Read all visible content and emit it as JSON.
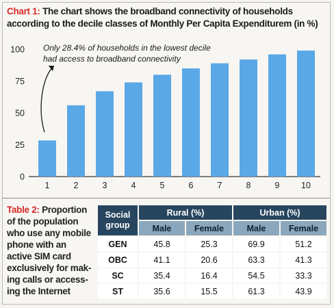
{
  "chart_data": [
    {
      "type": "bar",
      "title_label": "Chart 1:",
      "title": "The chart shows the broadband connectivity of households according to the decile classes of Monthly Per Capita Expenditurem (in %)",
      "categories": [
        "1",
        "2",
        "3",
        "4",
        "5",
        "6",
        "7",
        "8",
        "9",
        "10"
      ],
      "values": [
        28.4,
        56,
        67,
        74,
        80,
        85,
        89,
        92,
        96,
        99
      ],
      "y_ticks": [
        "0",
        "25",
        "50",
        "75",
        "100"
      ],
      "ylim": [
        0,
        100
      ],
      "grid": false,
      "bar_color": "#5aa8e6",
      "annotation": {
        "line1": "Only 28.4% of households in the lowest decile",
        "line2": "had access to broadband connectivity",
        "points_to": "1"
      }
    },
    {
      "type": "table",
      "title_label": "Table 2:",
      "title": "Proportion of the population who use any mobile phone with an active SIM card exclusively for mak-ing calls or access-ing the Internet",
      "caption_lines": [
        "of the population",
        "who use any mobile",
        "phone with an",
        "active SIM card",
        "exclusively for mak-",
        "ing calls or access-",
        "ing the Internet"
      ],
      "caption_first": "Proportion",
      "group_header_line1": "Social",
      "group_header_line2": "group",
      "column_groups": [
        "Rural (%)",
        "Urban (%)"
      ],
      "sub_columns": [
        "Male",
        "Female",
        "Male",
        "Female"
      ],
      "rows": [
        {
          "group": "GEN",
          "values": [
            "45.8",
            "25.3",
            "69.9",
            "51.2"
          ]
        },
        {
          "group": "OBC",
          "values": [
            "41.1",
            "20.6",
            "63.3",
            "41.3"
          ]
        },
        {
          "group": "SC",
          "values": [
            "35.4",
            "16.4",
            "54.5",
            "33.3"
          ]
        },
        {
          "group": "ST",
          "values": [
            "35.6",
            "15.5",
            "61.3",
            "43.9"
          ]
        }
      ]
    }
  ]
}
